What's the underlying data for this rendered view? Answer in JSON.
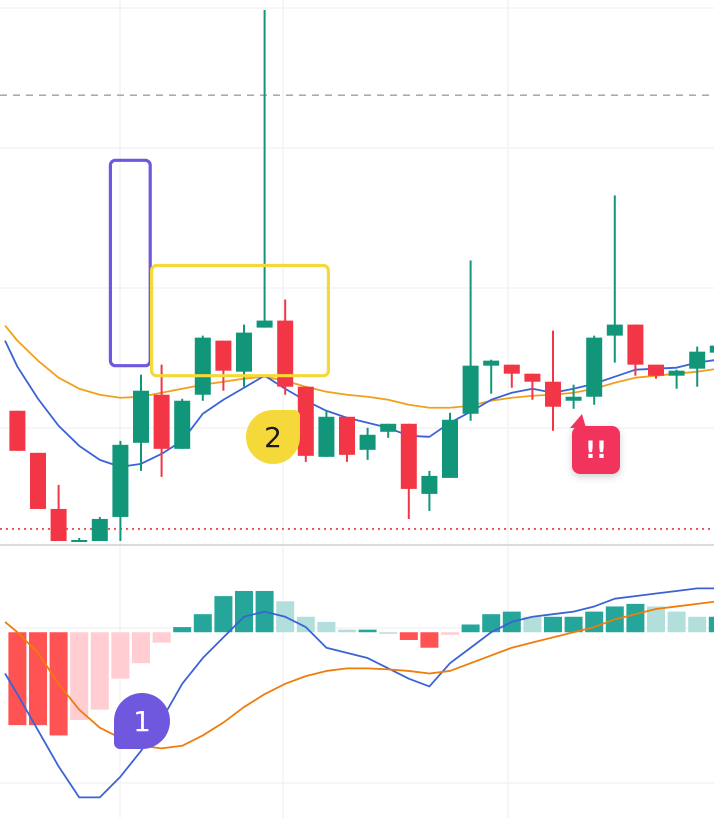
{
  "chart_data": {
    "type": "candlestick",
    "title": "",
    "price_panel": {
      "ylim": [
        0,
        54
      ],
      "grid": true,
      "reference_lines": [
        {
          "kind": "dashed",
          "value": 44.5,
          "color": "#9e9e9e"
        },
        {
          "kind": "dotted",
          "value": 1.2,
          "color": "#e53935"
        }
      ],
      "candles": [
        {
          "x": -1,
          "o": 13.0,
          "h": 13.0,
          "l": 9.0,
          "c": 9.0
        },
        {
          "x": 0,
          "o": 8.8,
          "h": 8.8,
          "l": 3.2,
          "c": 3.2
        },
        {
          "x": 1,
          "o": 3.2,
          "h": 5.6,
          "l": 0.0,
          "c": 0.0
        },
        {
          "x": 2,
          "o": 0.0,
          "h": 0.3,
          "l": 0.0,
          "c": 0.1
        },
        {
          "x": 3,
          "o": 0.0,
          "h": 2.4,
          "l": 0.0,
          "c": 2.2
        },
        {
          "x": 4,
          "o": 2.4,
          "h": 10.0,
          "l": 0.0,
          "c": 9.6
        },
        {
          "x": 5,
          "o": 9.8,
          "h": 16.6,
          "l": 7.0,
          "c": 15.0
        },
        {
          "x": 6,
          "o": 14.6,
          "h": 17.6,
          "l": 6.4,
          "c": 9.2
        },
        {
          "x": 7,
          "o": 9.2,
          "h": 14.2,
          "l": 9.2,
          "c": 14.0
        },
        {
          "x": 8,
          "o": 14.6,
          "h": 20.5,
          "l": 14.0,
          "c": 20.3
        },
        {
          "x": 9,
          "o": 20.0,
          "h": 20.0,
          "l": 15.0,
          "c": 17.0
        },
        {
          "x": 10,
          "o": 16.9,
          "h": 21.6,
          "l": 15.4,
          "c": 20.8
        },
        {
          "x": 11,
          "o": 21.3,
          "h": 53.0,
          "l": 21.3,
          "c": 22.0
        },
        {
          "x": 12,
          "o": 22.0,
          "h": 24.1,
          "l": 14.6,
          "c": 15.4
        },
        {
          "x": 13,
          "o": 15.4,
          "h": 15.4,
          "l": 7.9,
          "c": 8.5
        },
        {
          "x": 14,
          "o": 8.4,
          "h": 13.0,
          "l": 8.4,
          "c": 12.4
        },
        {
          "x": 15,
          "o": 12.4,
          "h": 12.4,
          "l": 7.9,
          "c": 8.6
        },
        {
          "x": 16,
          "o": 9.1,
          "h": 11.3,
          "l": 8.1,
          "c": 10.6
        },
        {
          "x": 17,
          "o": 10.9,
          "h": 11.7,
          "l": 10.3,
          "c": 11.7
        },
        {
          "x": 18,
          "o": 11.7,
          "h": 11.7,
          "l": 2.2,
          "c": 5.2
        },
        {
          "x": 19,
          "o": 4.7,
          "h": 7.0,
          "l": 3.0,
          "c": 6.5
        },
        {
          "x": 20,
          "o": 6.3,
          "h": 12.8,
          "l": 6.3,
          "c": 12.1
        },
        {
          "x": 21,
          "o": 12.7,
          "h": 28.0,
          "l": 12.0,
          "c": 17.5
        },
        {
          "x": 22,
          "o": 17.5,
          "h": 18.1,
          "l": 14.7,
          "c": 18.0
        },
        {
          "x": 23,
          "o": 17.6,
          "h": 17.6,
          "l": 15.3,
          "c": 16.7
        },
        {
          "x": 24,
          "o": 16.7,
          "h": 16.7,
          "l": 14.1,
          "c": 15.9
        },
        {
          "x": 25,
          "o": 15.9,
          "h": 21.0,
          "l": 11.0,
          "c": 13.4
        },
        {
          "x": 26,
          "o": 14.0,
          "h": 15.6,
          "l": 13.2,
          "c": 14.4
        },
        {
          "x": 27,
          "o": 14.4,
          "h": 20.5,
          "l": 13.6,
          "c": 20.3
        },
        {
          "x": 28,
          "o": 20.5,
          "h": 34.5,
          "l": 17.8,
          "c": 21.6
        },
        {
          "x": 29,
          "o": 21.6,
          "h": 21.6,
          "l": 16.5,
          "c": 17.6
        },
        {
          "x": 30,
          "o": 17.6,
          "h": 17.6,
          "l": 16.2,
          "c": 16.5
        },
        {
          "x": 31,
          "o": 16.5,
          "h": 17.1,
          "l": 15.2,
          "c": 17.0
        },
        {
          "x": 32,
          "o": 17.2,
          "h": 19.4,
          "l": 15.4,
          "c": 18.9
        },
        {
          "x": 33,
          "o": 18.8,
          "h": 19.9,
          "l": 17.5,
          "c": 19.5
        }
      ],
      "moving_averages": [
        {
          "color": "#f0a01c",
          "points": [
            [
              -1.6,
              21.5
            ],
            [
              -1,
              20.0
            ],
            [
              0,
              18.0
            ],
            [
              1,
              16.3
            ],
            [
              2,
              15.2
            ],
            [
              3,
              14.6
            ],
            [
              4,
              14.3
            ],
            [
              5,
              14.4
            ],
            [
              6,
              14.8
            ],
            [
              7,
              15.2
            ],
            [
              8,
              15.6
            ],
            [
              9,
              15.9
            ],
            [
              10,
              16.2
            ],
            [
              11,
              16.4
            ],
            [
              12,
              16.0
            ],
            [
              13,
              15.4
            ],
            [
              14,
              14.9
            ],
            [
              15,
              14.6
            ],
            [
              16,
              14.4
            ],
            [
              17,
              14.1
            ],
            [
              18,
              13.6
            ],
            [
              19,
              13.3
            ],
            [
              20,
              13.3
            ],
            [
              21,
              13.5
            ],
            [
              22,
              14.0
            ],
            [
              23,
              14.3
            ],
            [
              24,
              14.5
            ],
            [
              25,
              14.6
            ],
            [
              26,
              14.8
            ],
            [
              27,
              15.2
            ],
            [
              28,
              15.8
            ],
            [
              29,
              16.3
            ],
            [
              30,
              16.5
            ],
            [
              31,
              16.7
            ],
            [
              32,
              16.9
            ],
            [
              33,
              17.2
            ]
          ]
        },
        {
          "color": "#3a63d6",
          "points": [
            [
              -1.6,
              20.0
            ],
            [
              -1,
              17.4
            ],
            [
              0,
              14.2
            ],
            [
              1,
              11.5
            ],
            [
              2,
              9.5
            ],
            [
              3,
              8.1
            ],
            [
              4,
              7.4
            ],
            [
              5,
              7.7
            ],
            [
              6,
              8.7
            ],
            [
              7,
              10.0
            ],
            [
              8,
              12.7
            ],
            [
              9,
              14.1
            ],
            [
              10,
              15.3
            ],
            [
              11,
              16.5
            ],
            [
              12,
              15.2
            ],
            [
              13,
              14.0
            ],
            [
              14,
              13.0
            ],
            [
              15,
              12.3
            ],
            [
              16,
              11.8
            ],
            [
              17,
              11.3
            ],
            [
              18,
              10.5
            ],
            [
              19,
              10.4
            ],
            [
              20,
              11.8
            ],
            [
              21,
              12.9
            ],
            [
              22,
              14.1
            ],
            [
              23,
              14.8
            ],
            [
              24,
              15.2
            ],
            [
              25,
              14.8
            ],
            [
              26,
              15.2
            ],
            [
              27,
              15.7
            ],
            [
              28,
              16.4
            ],
            [
              29,
              17.1
            ],
            [
              30,
              17.2
            ],
            [
              31,
              17.3
            ],
            [
              32,
              17.8
            ],
            [
              33,
              18.1
            ]
          ]
        }
      ]
    },
    "macd_panel": {
      "ylim": [
        -3.6,
        1.4
      ],
      "histogram": [
        {
          "x": -1,
          "v": -1.8
        },
        {
          "x": 0,
          "v": -1.8
        },
        {
          "x": 1,
          "v": -2.0
        },
        {
          "x": 2,
          "v": -1.7
        },
        {
          "x": 3,
          "v": -1.5
        },
        {
          "x": 4,
          "v": -0.9
        },
        {
          "x": 5,
          "v": -0.6
        },
        {
          "x": 6,
          "v": -0.2
        },
        {
          "x": 7,
          "v": 0.1
        },
        {
          "x": 8,
          "v": 0.35
        },
        {
          "x": 9,
          "v": 0.7
        },
        {
          "x": 10,
          "v": 0.8
        },
        {
          "x": 11,
          "v": 0.8
        },
        {
          "x": 12,
          "v": 0.6
        },
        {
          "x": 13,
          "v": 0.3
        },
        {
          "x": 14,
          "v": 0.2
        },
        {
          "x": 15,
          "v": 0.05
        },
        {
          "x": 16,
          "v": 0.05
        },
        {
          "x": 17,
          "v": 0.0
        },
        {
          "x": 18,
          "v": -0.15
        },
        {
          "x": 19,
          "v": -0.3
        },
        {
          "x": 20,
          "v": -0.05
        },
        {
          "x": 21,
          "v": 0.15
        },
        {
          "x": 22,
          "v": 0.35
        },
        {
          "x": 23,
          "v": 0.4
        },
        {
          "x": 24,
          "v": 0.3
        },
        {
          "x": 25,
          "v": 0.3
        },
        {
          "x": 26,
          "v": 0.3
        },
        {
          "x": 27,
          "v": 0.4
        },
        {
          "x": 28,
          "v": 0.5
        },
        {
          "x": 29,
          "v": 0.55
        },
        {
          "x": 30,
          "v": 0.5
        },
        {
          "x": 31,
          "v": 0.4
        },
        {
          "x": 32,
          "v": 0.3
        },
        {
          "x": 33,
          "v": 0.3
        }
      ],
      "lines": [
        {
          "color": "#3a63d6",
          "points": [
            [
              -1.6,
              -0.8
            ],
            [
              -1,
              -1.2
            ],
            [
              0,
              -1.9
            ],
            [
              1,
              -2.6
            ],
            [
              2,
              -3.2
            ],
            [
              3,
              -3.2
            ],
            [
              4,
              -2.8
            ],
            [
              5,
              -2.3
            ],
            [
              6,
              -1.7
            ],
            [
              7,
              -1.0
            ],
            [
              8,
              -0.5
            ],
            [
              9,
              -0.1
            ],
            [
              10,
              0.3
            ],
            [
              11,
              0.4
            ],
            [
              12,
              0.3
            ],
            [
              13,
              0.1
            ],
            [
              14,
              -0.3
            ],
            [
              15,
              -0.4
            ],
            [
              16,
              -0.5
            ],
            [
              17,
              -0.7
            ],
            [
              18,
              -0.9
            ],
            [
              19,
              -1.05
            ],
            [
              20,
              -0.6
            ],
            [
              21,
              -0.3
            ],
            [
              22,
              0.0
            ],
            [
              23,
              0.2
            ],
            [
              24,
              0.3
            ],
            [
              25,
              0.35
            ],
            [
              26,
              0.4
            ],
            [
              27,
              0.5
            ],
            [
              28,
              0.65
            ],
            [
              29,
              0.7
            ],
            [
              30,
              0.75
            ],
            [
              31,
              0.8
            ],
            [
              32,
              0.85
            ],
            [
              33,
              0.85
            ]
          ]
        },
        {
          "color": "#ef7d0c",
          "points": [
            [
              -1.6,
              0.2
            ],
            [
              -1,
              0.0
            ],
            [
              0,
              -0.4
            ],
            [
              1,
              -1.0
            ],
            [
              2,
              -1.5
            ],
            [
              3,
              -1.85
            ],
            [
              4,
              -2.05
            ],
            [
              5,
              -2.2
            ],
            [
              6,
              -2.25
            ],
            [
              7,
              -2.2
            ],
            [
              8,
              -2.0
            ],
            [
              9,
              -1.75
            ],
            [
              10,
              -1.45
            ],
            [
              11,
              -1.2
            ],
            [
              12,
              -1.0
            ],
            [
              13,
              -0.85
            ],
            [
              14,
              -0.75
            ],
            [
              15,
              -0.7
            ],
            [
              16,
              -0.7
            ],
            [
              17,
              -0.72
            ],
            [
              18,
              -0.75
            ],
            [
              19,
              -0.8
            ],
            [
              20,
              -0.75
            ],
            [
              21,
              -0.6
            ],
            [
              22,
              -0.45
            ],
            [
              23,
              -0.3
            ],
            [
              24,
              -0.2
            ],
            [
              25,
              -0.1
            ],
            [
              26,
              0.0
            ],
            [
              27,
              0.1
            ],
            [
              28,
              0.25
            ],
            [
              29,
              0.35
            ],
            [
              30,
              0.45
            ],
            [
              31,
              0.5
            ],
            [
              32,
              0.55
            ],
            [
              33,
              0.6
            ]
          ]
        }
      ]
    },
    "annotations": [
      {
        "kind": "box",
        "color": "#6f57de",
        "x_range": [
          4.0,
          5.35
        ],
        "y_range": [
          17.5,
          38.0
        ]
      },
      {
        "kind": "box",
        "color": "#f5d93a",
        "x_range": [
          6.0,
          14.0
        ],
        "y_range": [
          16.5,
          27.5
        ]
      },
      {
        "kind": "badge",
        "label": "1",
        "color": "#6f57de"
      },
      {
        "kind": "badge",
        "label": "2",
        "color": "#f5d93a"
      },
      {
        "kind": "badge",
        "label": "!!",
        "color": "#f2335e"
      }
    ],
    "colors": {
      "up": "#11967a",
      "down": "#f23645",
      "hist_up_strong": "#26a69a",
      "hist_up_weak": "#b2dfdb",
      "hist_down_strong": "#ff5252",
      "hist_down_weak": "#ffcdd2"
    }
  }
}
